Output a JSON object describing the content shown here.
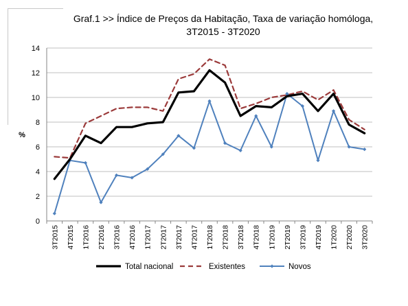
{
  "title": {
    "line1": "Graf.1  >> Índice de Preços da Habitação, Taxa de variação homóloga,",
    "line2": "3T2015 - 3T2020"
  },
  "chart_data": {
    "type": "line",
    "title": "Graf.1  >> Índice de Preços da Habitação, Taxa de variação homóloga, 3T2015 - 3T2020",
    "xlabel": "",
    "ylabel": "%",
    "ylim": [
      0,
      14
    ],
    "yticks": [
      0,
      2,
      4,
      6,
      8,
      10,
      12,
      14
    ],
    "grid": true,
    "legend_position": "bottom",
    "categories": [
      "3T2015",
      "4T2015",
      "1T2016",
      "2T2016",
      "3T2016",
      "4T2016",
      "1T2017",
      "2T2017",
      "3T2017",
      "4T2017",
      "1T2018",
      "2T2018",
      "3T2018",
      "4T2018",
      "1T2019",
      "2T2019",
      "3T2019",
      "4T2019",
      "1T2020",
      "2T2020",
      "3T2020"
    ],
    "series": [
      {
        "name": "Total nacional",
        "color": "#000000",
        "style": "solid",
        "values": [
          3.4,
          5.0,
          6.9,
          6.3,
          7.6,
          7.6,
          7.9,
          8.0,
          10.4,
          10.5,
          12.2,
          11.2,
          8.5,
          9.3,
          9.2,
          10.1,
          10.3,
          8.9,
          10.3,
          7.8,
          7.1
        ]
      },
      {
        "name": "Existentes",
        "color": "#9b3a3a",
        "style": "dashed",
        "values": [
          5.2,
          5.1,
          7.9,
          8.5,
          9.1,
          9.2,
          9.2,
          8.9,
          11.5,
          11.9,
          13.1,
          12.6,
          9.1,
          9.5,
          10.0,
          10.2,
          10.5,
          9.8,
          10.6,
          8.2,
          7.4
        ]
      },
      {
        "name": "Novos",
        "color": "#4f81bd",
        "style": "solid-markers",
        "values": [
          0.6,
          4.9,
          4.7,
          1.5,
          3.7,
          3.5,
          4.2,
          5.4,
          6.9,
          5.9,
          9.7,
          6.3,
          5.7,
          8.5,
          6.0,
          10.3,
          9.3,
          4.9,
          8.9,
          6.0,
          5.8
        ]
      }
    ]
  }
}
